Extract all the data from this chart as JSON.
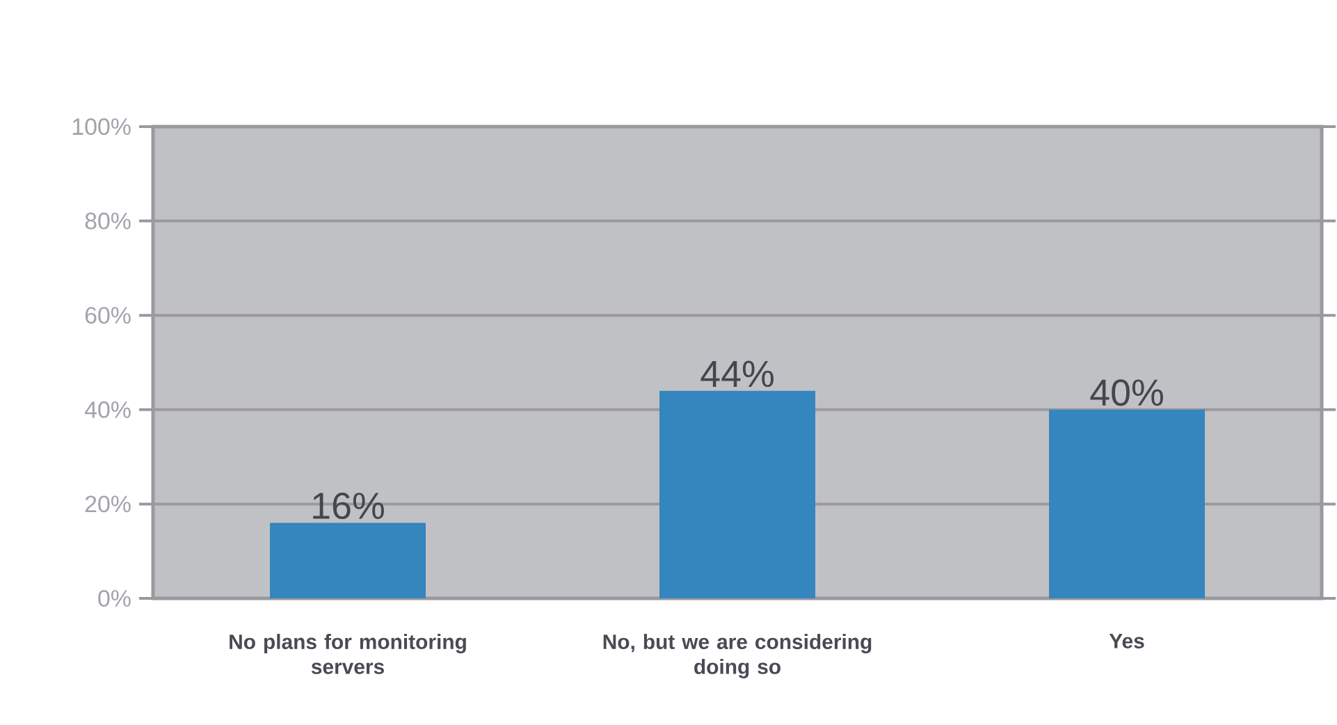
{
  "chart_data": {
    "type": "bar",
    "categories": [
      "No plans for monitoring servers",
      "No, but we are considering doing so",
      "Yes"
    ],
    "values": [
      16,
      44,
      40
    ],
    "color": "#3585be",
    "value_labels": [
      "16%",
      "44%",
      "40%"
    ],
    "ylim": [
      0,
      100
    ],
    "yticks": [
      {
        "value": 0,
        "label": "0%"
      },
      {
        "value": 20,
        "label": "20%"
      },
      {
        "value": 40,
        "label": "40%"
      },
      {
        "value": 60,
        "label": "60%"
      },
      {
        "value": 80,
        "label": "80%"
      },
      {
        "value": 100,
        "label": "100%"
      }
    ],
    "grid": "y"
  }
}
